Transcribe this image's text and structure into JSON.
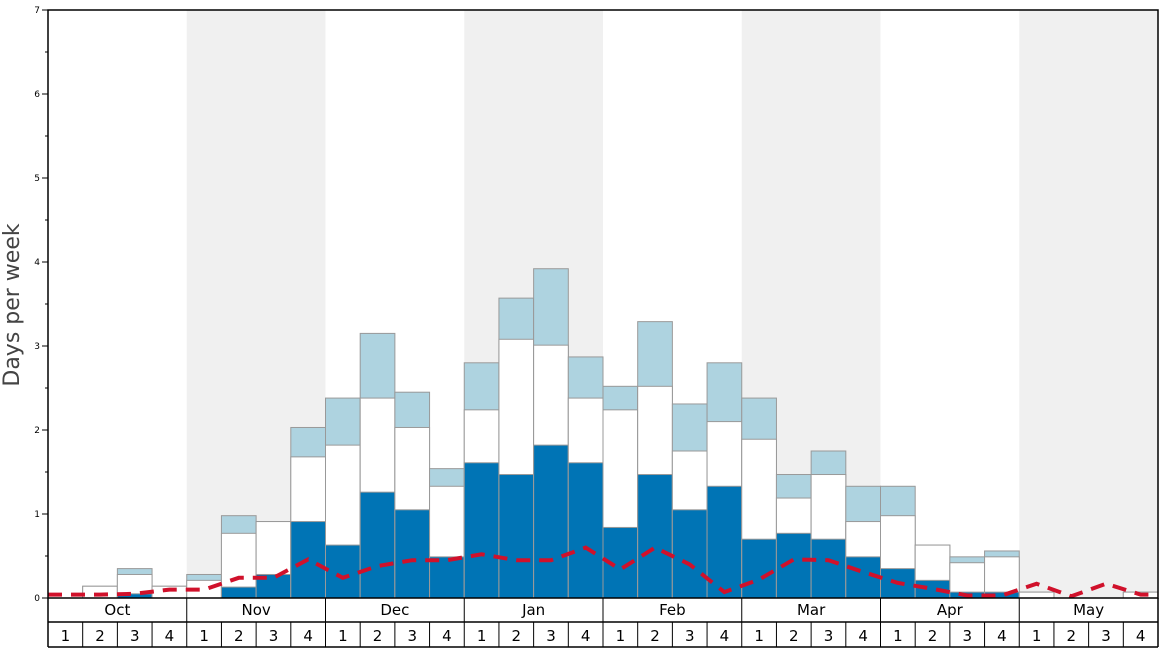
{
  "chart_data": {
    "type": "bar",
    "ylabel": "Days per week",
    "ylim": [
      0,
      7
    ],
    "yticks": [
      "0",
      "1",
      "2",
      "3",
      "4",
      "5",
      "6",
      "7"
    ],
    "months": [
      "Oct",
      "Nov",
      "Dec",
      "Jan",
      "Feb",
      "Mar",
      "Apr",
      "May"
    ],
    "weeks": [
      "1",
      "2",
      "3",
      "4",
      "1",
      "2",
      "3",
      "4",
      "1",
      "2",
      "3",
      "4",
      "1",
      "2",
      "3",
      "4",
      "1",
      "2",
      "3",
      "4",
      "1",
      "2",
      "3",
      "4",
      "1",
      "2",
      "3",
      "4",
      "1",
      "2",
      "3",
      "4"
    ],
    "colors": {
      "dark": "#0074b5",
      "mid": "#ffffff",
      "light": "#aed3e0",
      "line": "#d0112b",
      "shade": "#f0f0f0",
      "outline": "#999999"
    },
    "series": [
      {
        "values": [
          0,
          0,
          0.05,
          0,
          0,
          0.13,
          0.28,
          0.91,
          0.63,
          1.26,
          1.05,
          0.49,
          1.61,
          1.47,
          1.82,
          1.61,
          0.84,
          1.47,
          1.05,
          1.33,
          0.7,
          0.77,
          0.7,
          0.49,
          0.35,
          0.21,
          0.07,
          0.07,
          0,
          0,
          0,
          0
        ]
      },
      {
        "values": [
          0,
          0.14,
          0.28,
          0.14,
          0.21,
          0.77,
          0.91,
          1.68,
          1.82,
          2.38,
          2.03,
          1.33,
          2.24,
          3.08,
          3.01,
          2.38,
          2.24,
          2.52,
          1.75,
          2.1,
          1.89,
          1.19,
          1.47,
          0.91,
          0.98,
          0.63,
          0.42,
          0.49,
          0.07,
          0,
          0,
          0.07
        ]
      },
      {
        "values": [
          0,
          0.14,
          0.35,
          0.14,
          0.28,
          0.98,
          0.91,
          2.03,
          2.38,
          3.15,
          2.45,
          1.54,
          2.8,
          3.57,
          3.92,
          2.87,
          2.52,
          3.29,
          2.31,
          2.8,
          2.38,
          1.47,
          1.75,
          1.33,
          1.33,
          0.63,
          0.49,
          0.56,
          0.07,
          0,
          0,
          0.07
        ]
      },
      {
        "values": [
          0.04,
          0.04,
          0.05,
          0.1,
          0.1,
          0.24,
          0.24,
          0.46,
          0.24,
          0.38,
          0.45,
          0.45,
          0.52,
          0.45,
          0.45,
          0.6,
          0.34,
          0.6,
          0.4,
          0.07,
          0.22,
          0.46,
          0.45,
          0.31,
          0.18,
          0.11,
          0.03,
          0.03,
          0.17,
          0.02,
          0.17,
          0.04
        ]
      }
    ]
  }
}
